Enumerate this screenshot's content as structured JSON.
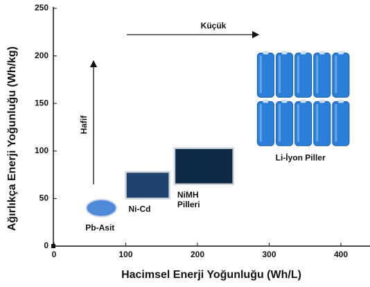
{
  "chart_data": {
    "type": "region",
    "x_label": "Hacimsel Enerji Yoğunluğu (Wh/L)",
    "y_label": "Ağırlıkça Enerji Yoğunluğu (Wh/kg)",
    "xlim": [
      0,
      440
    ],
    "ylim": [
      0,
      250
    ],
    "xticks": [
      0,
      100,
      200,
      300,
      400
    ],
    "yticks": [
      0,
      50,
      100,
      150,
      200,
      250
    ],
    "annotations": [
      "Küçük",
      "Hafif"
    ],
    "regions": [
      {
        "name": "Pb-Asit",
        "shape": "ellipse",
        "color": "#4f8ad9",
        "x": [
          45,
          87
        ],
        "y": [
          31,
          49
        ]
      },
      {
        "name": "Ni-Cd",
        "shape": "rect",
        "color": "#1f426f",
        "x": [
          100,
          161
        ],
        "y": [
          50,
          78
        ]
      },
      {
        "name": "NiMH Pilleri",
        "shape": "rect",
        "color": "#0f2a48",
        "x": [
          168,
          250
        ],
        "y": [
          65,
          103
        ]
      },
      {
        "name": "Li-İyon Piller",
        "shape": "cells",
        "color": "#2b7fd8",
        "x": [
          282,
          413
        ],
        "y": [
          104,
          206
        ]
      }
    ]
  }
}
